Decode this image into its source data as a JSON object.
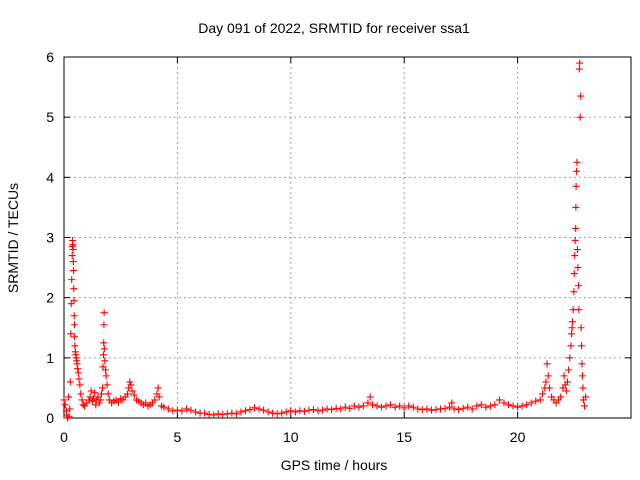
{
  "chart_data": {
    "type": "scatter",
    "title": "Day 091 of 2022, SRMTID for receiver ssa1",
    "xlabel": "GPS time / hours",
    "ylabel": "SRMTID / TECUs",
    "xlim": [
      0,
      25
    ],
    "ylim": [
      0,
      6
    ],
    "xticks": [
      0,
      5,
      10,
      15,
      20
    ],
    "yticks": [
      0,
      1,
      2,
      3,
      4,
      5,
      6
    ],
    "grid": true,
    "marker": "+",
    "series": [
      {
        "name": "SRMTID",
        "color": "#ff0000",
        "points": [
          [
            0.0,
            0.3
          ],
          [
            0.05,
            0.22
          ],
          [
            0.1,
            0.12
          ],
          [
            0.12,
            0.05
          ],
          [
            0.15,
            0.0
          ],
          [
            0.2,
            0.35
          ],
          [
            0.22,
            0.02
          ],
          [
            0.25,
            0.15
          ],
          [
            0.28,
            0.6
          ],
          [
            0.3,
            1.4
          ],
          [
            0.32,
            1.9
          ],
          [
            0.34,
            2.3
          ],
          [
            0.36,
            2.7
          ],
          [
            0.37,
            2.85
          ],
          [
            0.38,
            2.95
          ],
          [
            0.39,
            2.88
          ],
          [
            0.4,
            2.8
          ],
          [
            0.41,
            2.6
          ],
          [
            0.42,
            2.45
          ],
          [
            0.43,
            2.15
          ],
          [
            0.44,
            1.95
          ],
          [
            0.45,
            1.7
          ],
          [
            0.46,
            1.55
          ],
          [
            0.47,
            1.35
          ],
          [
            0.48,
            1.2
          ],
          [
            0.5,
            1.1
          ],
          [
            0.52,
            1.05
          ],
          [
            0.54,
            1.0
          ],
          [
            0.56,
            0.95
          ],
          [
            0.58,
            0.9
          ],
          [
            0.6,
            0.82
          ],
          [
            0.63,
            0.75
          ],
          [
            0.66,
            0.65
          ],
          [
            0.7,
            0.55
          ],
          [
            0.74,
            0.4
          ],
          [
            0.8,
            0.3
          ],
          [
            0.85,
            0.22
          ],
          [
            0.9,
            0.2
          ],
          [
            1.0,
            0.25
          ],
          [
            1.1,
            0.3
          ],
          [
            1.15,
            0.35
          ],
          [
            1.2,
            0.45
          ],
          [
            1.25,
            0.28
          ],
          [
            1.3,
            0.32
          ],
          [
            1.35,
            0.42
          ],
          [
            1.4,
            0.22
          ],
          [
            1.45,
            0.3
          ],
          [
            1.5,
            0.35
          ],
          [
            1.55,
            0.25
          ],
          [
            1.6,
            0.3
          ],
          [
            1.65,
            0.4
          ],
          [
            1.7,
            0.5
          ],
          [
            1.72,
            0.85
          ],
          [
            1.74,
            1.05
          ],
          [
            1.75,
            1.25
          ],
          [
            1.76,
            1.55
          ],
          [
            1.77,
            1.75
          ],
          [
            1.78,
            1.15
          ],
          [
            1.8,
            0.95
          ],
          [
            1.83,
            0.8
          ],
          [
            1.86,
            0.7
          ],
          [
            1.9,
            0.55
          ],
          [
            1.95,
            0.4
          ],
          [
            2.0,
            0.3
          ],
          [
            2.1,
            0.25
          ],
          [
            2.2,
            0.28
          ],
          [
            2.3,
            0.3
          ],
          [
            2.4,
            0.26
          ],
          [
            2.5,
            0.32
          ],
          [
            2.6,
            0.3
          ],
          [
            2.7,
            0.35
          ],
          [
            2.8,
            0.4
          ],
          [
            2.85,
            0.5
          ],
          [
            2.9,
            0.6
          ],
          [
            2.95,
            0.55
          ],
          [
            3.0,
            0.45
          ],
          [
            3.1,
            0.38
          ],
          [
            3.2,
            0.3
          ],
          [
            3.3,
            0.28
          ],
          [
            3.4,
            0.25
          ],
          [
            3.5,
            0.22
          ],
          [
            3.6,
            0.25
          ],
          [
            3.7,
            0.2
          ],
          [
            3.8,
            0.22
          ],
          [
            3.9,
            0.25
          ],
          [
            4.0,
            0.3
          ],
          [
            4.1,
            0.4
          ],
          [
            4.15,
            0.5
          ],
          [
            4.2,
            0.35
          ],
          [
            4.3,
            0.2
          ],
          [
            4.4,
            0.18
          ],
          [
            4.6,
            0.15
          ],
          [
            4.8,
            0.12
          ],
          [
            5.0,
            0.13
          ],
          [
            5.2,
            0.12
          ],
          [
            5.4,
            0.15
          ],
          [
            5.6,
            0.13
          ],
          [
            5.8,
            0.1
          ],
          [
            6.0,
            0.08
          ],
          [
            6.2,
            0.08
          ],
          [
            6.4,
            0.06
          ],
          [
            6.6,
            0.05
          ],
          [
            6.8,
            0.07
          ],
          [
            7.0,
            0.06
          ],
          [
            7.2,
            0.07
          ],
          [
            7.4,
            0.08
          ],
          [
            7.6,
            0.07
          ],
          [
            7.8,
            0.1
          ],
          [
            8.0,
            0.12
          ],
          [
            8.2,
            0.14
          ],
          [
            8.4,
            0.17
          ],
          [
            8.6,
            0.15
          ],
          [
            8.8,
            0.13
          ],
          [
            9.0,
            0.1
          ],
          [
            9.2,
            0.08
          ],
          [
            9.4,
            0.07
          ],
          [
            9.6,
            0.08
          ],
          [
            9.8,
            0.1
          ],
          [
            10.0,
            0.12
          ],
          [
            10.2,
            0.1
          ],
          [
            10.4,
            0.12
          ],
          [
            10.6,
            0.11
          ],
          [
            10.8,
            0.13
          ],
          [
            11.0,
            0.14
          ],
          [
            11.2,
            0.12
          ],
          [
            11.4,
            0.13
          ],
          [
            11.6,
            0.15
          ],
          [
            11.8,
            0.14
          ],
          [
            12.0,
            0.16
          ],
          [
            12.2,
            0.15
          ],
          [
            12.4,
            0.18
          ],
          [
            12.6,
            0.16
          ],
          [
            12.8,
            0.2
          ],
          [
            13.0,
            0.18
          ],
          [
            13.2,
            0.2
          ],
          [
            13.4,
            0.25
          ],
          [
            13.5,
            0.35
          ],
          [
            13.6,
            0.22
          ],
          [
            13.8,
            0.2
          ],
          [
            14.0,
            0.18
          ],
          [
            14.2,
            0.2
          ],
          [
            14.4,
            0.22
          ],
          [
            14.6,
            0.18
          ],
          [
            14.8,
            0.2
          ],
          [
            15.0,
            0.17
          ],
          [
            15.2,
            0.2
          ],
          [
            15.4,
            0.18
          ],
          [
            15.6,
            0.15
          ],
          [
            15.8,
            0.14
          ],
          [
            16.0,
            0.15
          ],
          [
            16.2,
            0.13
          ],
          [
            16.4,
            0.14
          ],
          [
            16.6,
            0.15
          ],
          [
            16.8,
            0.16
          ],
          [
            17.0,
            0.18
          ],
          [
            17.1,
            0.25
          ],
          [
            17.2,
            0.15
          ],
          [
            17.4,
            0.14
          ],
          [
            17.6,
            0.16
          ],
          [
            17.8,
            0.18
          ],
          [
            18.0,
            0.15
          ],
          [
            18.2,
            0.2
          ],
          [
            18.4,
            0.22
          ],
          [
            18.6,
            0.18
          ],
          [
            18.8,
            0.2
          ],
          [
            19.0,
            0.22
          ],
          [
            19.2,
            0.3
          ],
          [
            19.4,
            0.25
          ],
          [
            19.6,
            0.22
          ],
          [
            19.8,
            0.2
          ],
          [
            20.0,
            0.18
          ],
          [
            20.2,
            0.2
          ],
          [
            20.4,
            0.22
          ],
          [
            20.6,
            0.25
          ],
          [
            20.8,
            0.28
          ],
          [
            21.0,
            0.3
          ],
          [
            21.1,
            0.4
          ],
          [
            21.2,
            0.5
          ],
          [
            21.25,
            0.6
          ],
          [
            21.3,
            0.9
          ],
          [
            21.35,
            0.7
          ],
          [
            21.4,
            0.5
          ],
          [
            21.5,
            0.35
          ],
          [
            21.6,
            0.3
          ],
          [
            21.7,
            0.25
          ],
          [
            21.8,
            0.3
          ],
          [
            21.9,
            0.35
          ],
          [
            22.0,
            0.5
          ],
          [
            22.05,
            0.7
          ],
          [
            22.1,
            0.55
          ],
          [
            22.15,
            0.45
          ],
          [
            22.2,
            0.6
          ],
          [
            22.25,
            0.8
          ],
          [
            22.3,
            1.0
          ],
          [
            22.35,
            1.2
          ],
          [
            22.38,
            1.4
          ],
          [
            22.4,
            1.5
          ],
          [
            22.42,
            1.6
          ],
          [
            22.45,
            1.8
          ],
          [
            22.48,
            2.1
          ],
          [
            22.5,
            2.4
          ],
          [
            22.52,
            2.7
          ],
          [
            22.54,
            2.95
          ],
          [
            22.56,
            3.15
          ],
          [
            22.57,
            3.5
          ],
          [
            22.58,
            3.85
          ],
          [
            22.6,
            4.1
          ],
          [
            22.62,
            4.25
          ],
          [
            22.64,
            2.8
          ],
          [
            22.66,
            2.5
          ],
          [
            22.68,
            2.2
          ],
          [
            22.7,
            1.8
          ],
          [
            22.72,
            5.8
          ],
          [
            22.74,
            5.9
          ],
          [
            22.76,
            5.0
          ],
          [
            22.78,
            5.35
          ],
          [
            22.8,
            1.5
          ],
          [
            22.82,
            1.2
          ],
          [
            22.84,
            0.9
          ],
          [
            22.86,
            0.7
          ],
          [
            22.88,
            0.5
          ],
          [
            22.9,
            0.3
          ],
          [
            22.95,
            0.2
          ],
          [
            23.0,
            0.35
          ]
        ]
      }
    ]
  }
}
